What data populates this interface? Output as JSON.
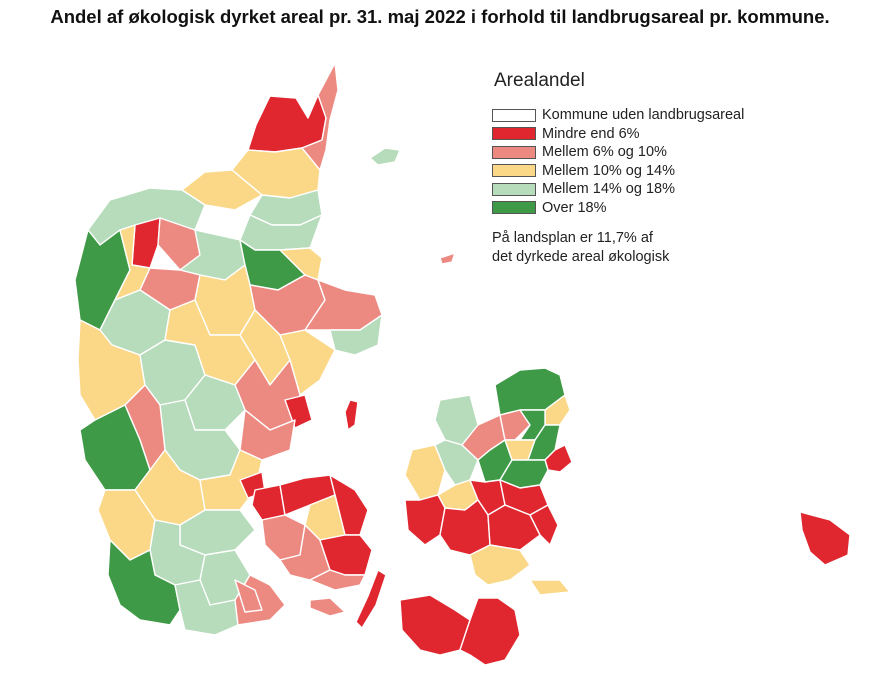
{
  "title": "Andel af økologisk dyrket areal pr. 31. maj 2022 i forhold til landbrugsareal pr. kommune.",
  "legend": {
    "title": "Arealandel",
    "items": [
      {
        "label": "Kommune uden landbrugsareal",
        "color": "#ffffff"
      },
      {
        "label": "Mindre end 6%",
        "color": "#e0262f"
      },
      {
        "label": "Mellem 6% og 10%",
        "color": "#ec8a82"
      },
      {
        "label": "Mellem 10% og 14%",
        "color": "#fad888"
      },
      {
        "label": "Mellem 14% og 18%",
        "color": "#b6dcbb"
      },
      {
        "label": "Over 18%",
        "color": "#3f9a47"
      }
    ],
    "note_line1": "På landsplan er 11,7% af",
    "note_line2": "det dyrkede areal økologisk"
  },
  "colors": {
    "red": "#e0262f",
    "salmon": "#ec8a82",
    "yellow": "#fad888",
    "lightgreen": "#b6dcbb",
    "darkgreen": "#3f9a47",
    "none": "#ffffff"
  }
}
